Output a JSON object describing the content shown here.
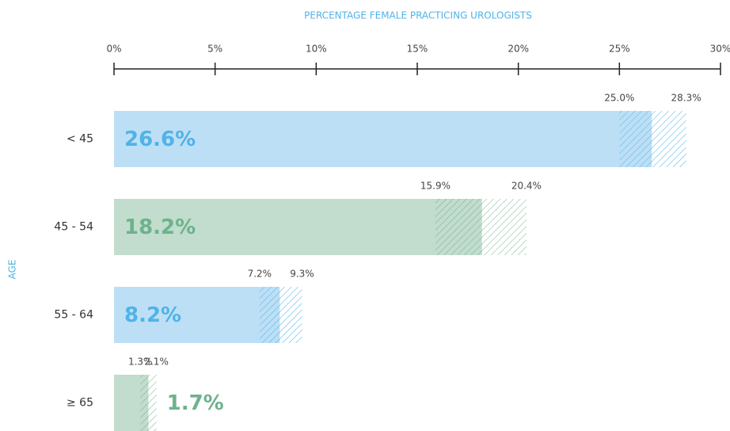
{
  "chart_data": {
    "type": "bar",
    "orientation": "horizontal",
    "title": "PERCENTAGE FEMALE PRACTICING UROLOGISTS",
    "y_label": "AGE",
    "categories": [
      "< 45",
      "45 - 54",
      "55 - 64",
      "≥ 65"
    ],
    "values": [
      26.6,
      18.2,
      8.2,
      1.7
    ],
    "value_labels": [
      "26.6%",
      "18.2%",
      "8.2%",
      "1.7%"
    ],
    "ci_low": [
      25.0,
      15.9,
      7.2,
      1.3
    ],
    "ci_low_labels": [
      "25.0%",
      "15.9%",
      "7.2%",
      "1.3%"
    ],
    "ci_high": [
      28.3,
      20.4,
      9.3,
      2.1
    ],
    "ci_high_labels": [
      "28.3%",
      "20.4%",
      "9.3%",
      "2.1%"
    ],
    "colors": [
      "#bddff5",
      "#c2dccd",
      "#bddff5",
      "#c2dccd"
    ],
    "label_colors": [
      "#4fb3e8",
      "#6cb38c",
      "#4fb3e8",
      "#6cb38c"
    ],
    "title_color": "#4fb3e8",
    "xlim": [
      0,
      30
    ],
    "xticks": [
      {
        "value": 0,
        "label": "0%"
      },
      {
        "value": 5,
        "label": "5%"
      },
      {
        "value": 10,
        "label": "10%"
      },
      {
        "value": 15,
        "label": "15%"
      },
      {
        "value": 20,
        "label": "20%"
      },
      {
        "value": 25,
        "label": "25%"
      },
      {
        "value": 30,
        "label": "30%"
      }
    ]
  }
}
